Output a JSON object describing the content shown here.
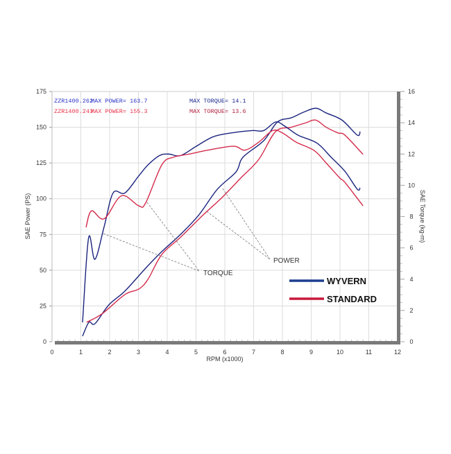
{
  "chart_data": {
    "type": "line",
    "title": "",
    "xlabel": "RPM (x1000)",
    "ylabel": "SAE Power (PS)",
    "y2label": "SAE Torque (kg-m)",
    "xlim": [
      0,
      12
    ],
    "ylim": [
      0,
      175
    ],
    "y2lim": [
      0,
      16
    ],
    "grid": true,
    "x_ticks": [
      "0",
      "1",
      "2",
      "3",
      "4",
      "5",
      "6",
      "7",
      "8",
      "9",
      "10",
      "11",
      "12"
    ],
    "y_ticks": [
      "0",
      "25",
      "50",
      "75",
      "100",
      "125",
      "150",
      "175"
    ],
    "y2_ticks": [
      "0",
      "2",
      "4",
      "6",
      "8",
      "10",
      "12",
      "14",
      "16"
    ],
    "header": [
      {
        "model": "ZZR1400.262",
        "max_power": "MAX POWER= 163.7",
        "max_torque": "MAX TORQUE= 14.1",
        "color": "#2a34c8"
      },
      {
        "model": "ZZR1400.243",
        "max_power": "MAX POWER= 155.3",
        "max_torque": "MAX TORQUE= 13.6",
        "color": "#e8344a"
      }
    ],
    "annotations": {
      "torque": "TORQUE",
      "power": "POWER"
    },
    "legend": {
      "placement": "bottom-right",
      "entries": [
        {
          "label": "WYVERN",
          "color": "#1d3f8f"
        },
        {
          "label": "STANDARD",
          "color": "#c8183c"
        }
      ]
    },
    "series": [
      {
        "name": "WYVERN power",
        "axis": "left",
        "color": "#1a237e",
        "x": [
          1.06,
          1.28,
          1.49,
          1.97,
          2.53,
          3.25,
          3.81,
          4.46,
          5.1,
          5.74,
          6.39,
          6.63,
          7.35,
          7.83,
          8.31,
          8.72,
          9.16,
          9.52,
          10.07,
          10.6,
          10.7
        ],
        "y": [
          3.9,
          13.6,
          12.6,
          25.7,
          35.4,
          51.4,
          63,
          75,
          88.7,
          106.6,
          118.8,
          129,
          140.6,
          153.7,
          156.6,
          160.4,
          163.3,
          160,
          155,
          144.5,
          147
        ]
      },
      {
        "name": "STANDARD power",
        "axis": "left",
        "color": "#d42a4a",
        "x": [
          1.2,
          1.73,
          2.53,
          3.01,
          3.33,
          3.81,
          4.46,
          5.25,
          5.9,
          6.55,
          7.18,
          7.76,
          8.31,
          8.8,
          9.16,
          9.52,
          9.93,
          10.17,
          10.8
        ],
        "y": [
          13.6,
          19.4,
          33,
          36.8,
          43.6,
          61,
          73,
          88.7,
          100.8,
          114.4,
          127.5,
          146.9,
          150,
          153,
          155,
          150,
          146,
          144.5,
          131
        ]
      },
      {
        "name": "WYVERN torque",
        "axis": "right",
        "color": "#1a237e",
        "x": [
          1.06,
          1.27,
          1.49,
          1.81,
          2.12,
          2.53,
          3.01,
          3.33,
          3.73,
          4.05,
          4.46,
          5.01,
          5.59,
          6.22,
          6.94,
          7.35,
          7.76,
          8.07,
          8.55,
          9.2,
          9.69,
          10.17,
          10.6,
          10.7
        ],
        "y": [
          1.24,
          6.65,
          5.27,
          7.36,
          9.51,
          9.51,
          10.6,
          11.3,
          11.9,
          12.0,
          11.9,
          12.5,
          13.1,
          13.35,
          13.5,
          13.5,
          14.05,
          13.8,
          13.2,
          12.7,
          11.8,
          10.9,
          9.75,
          9.84
        ]
      },
      {
        "name": "STANDARD torque",
        "axis": "right",
        "color": "#d42a4a",
        "x": [
          1.18,
          1.37,
          1.81,
          2.41,
          3.01,
          3.25,
          3.81,
          4.22,
          4.77,
          5.42,
          6.3,
          6.7,
          7.18,
          7.66,
          8.0,
          8.48,
          9.1,
          9.52,
          10.0,
          10.17,
          10.8
        ],
        "y": [
          7.31,
          8.37,
          7.86,
          9.33,
          8.69,
          8.87,
          11.3,
          11.8,
          12.0,
          12.25,
          12.5,
          12.25,
          12.76,
          13.5,
          13.35,
          12.76,
          12.23,
          11.43,
          10.46,
          10.19,
          8.69
        ]
      }
    ]
  }
}
